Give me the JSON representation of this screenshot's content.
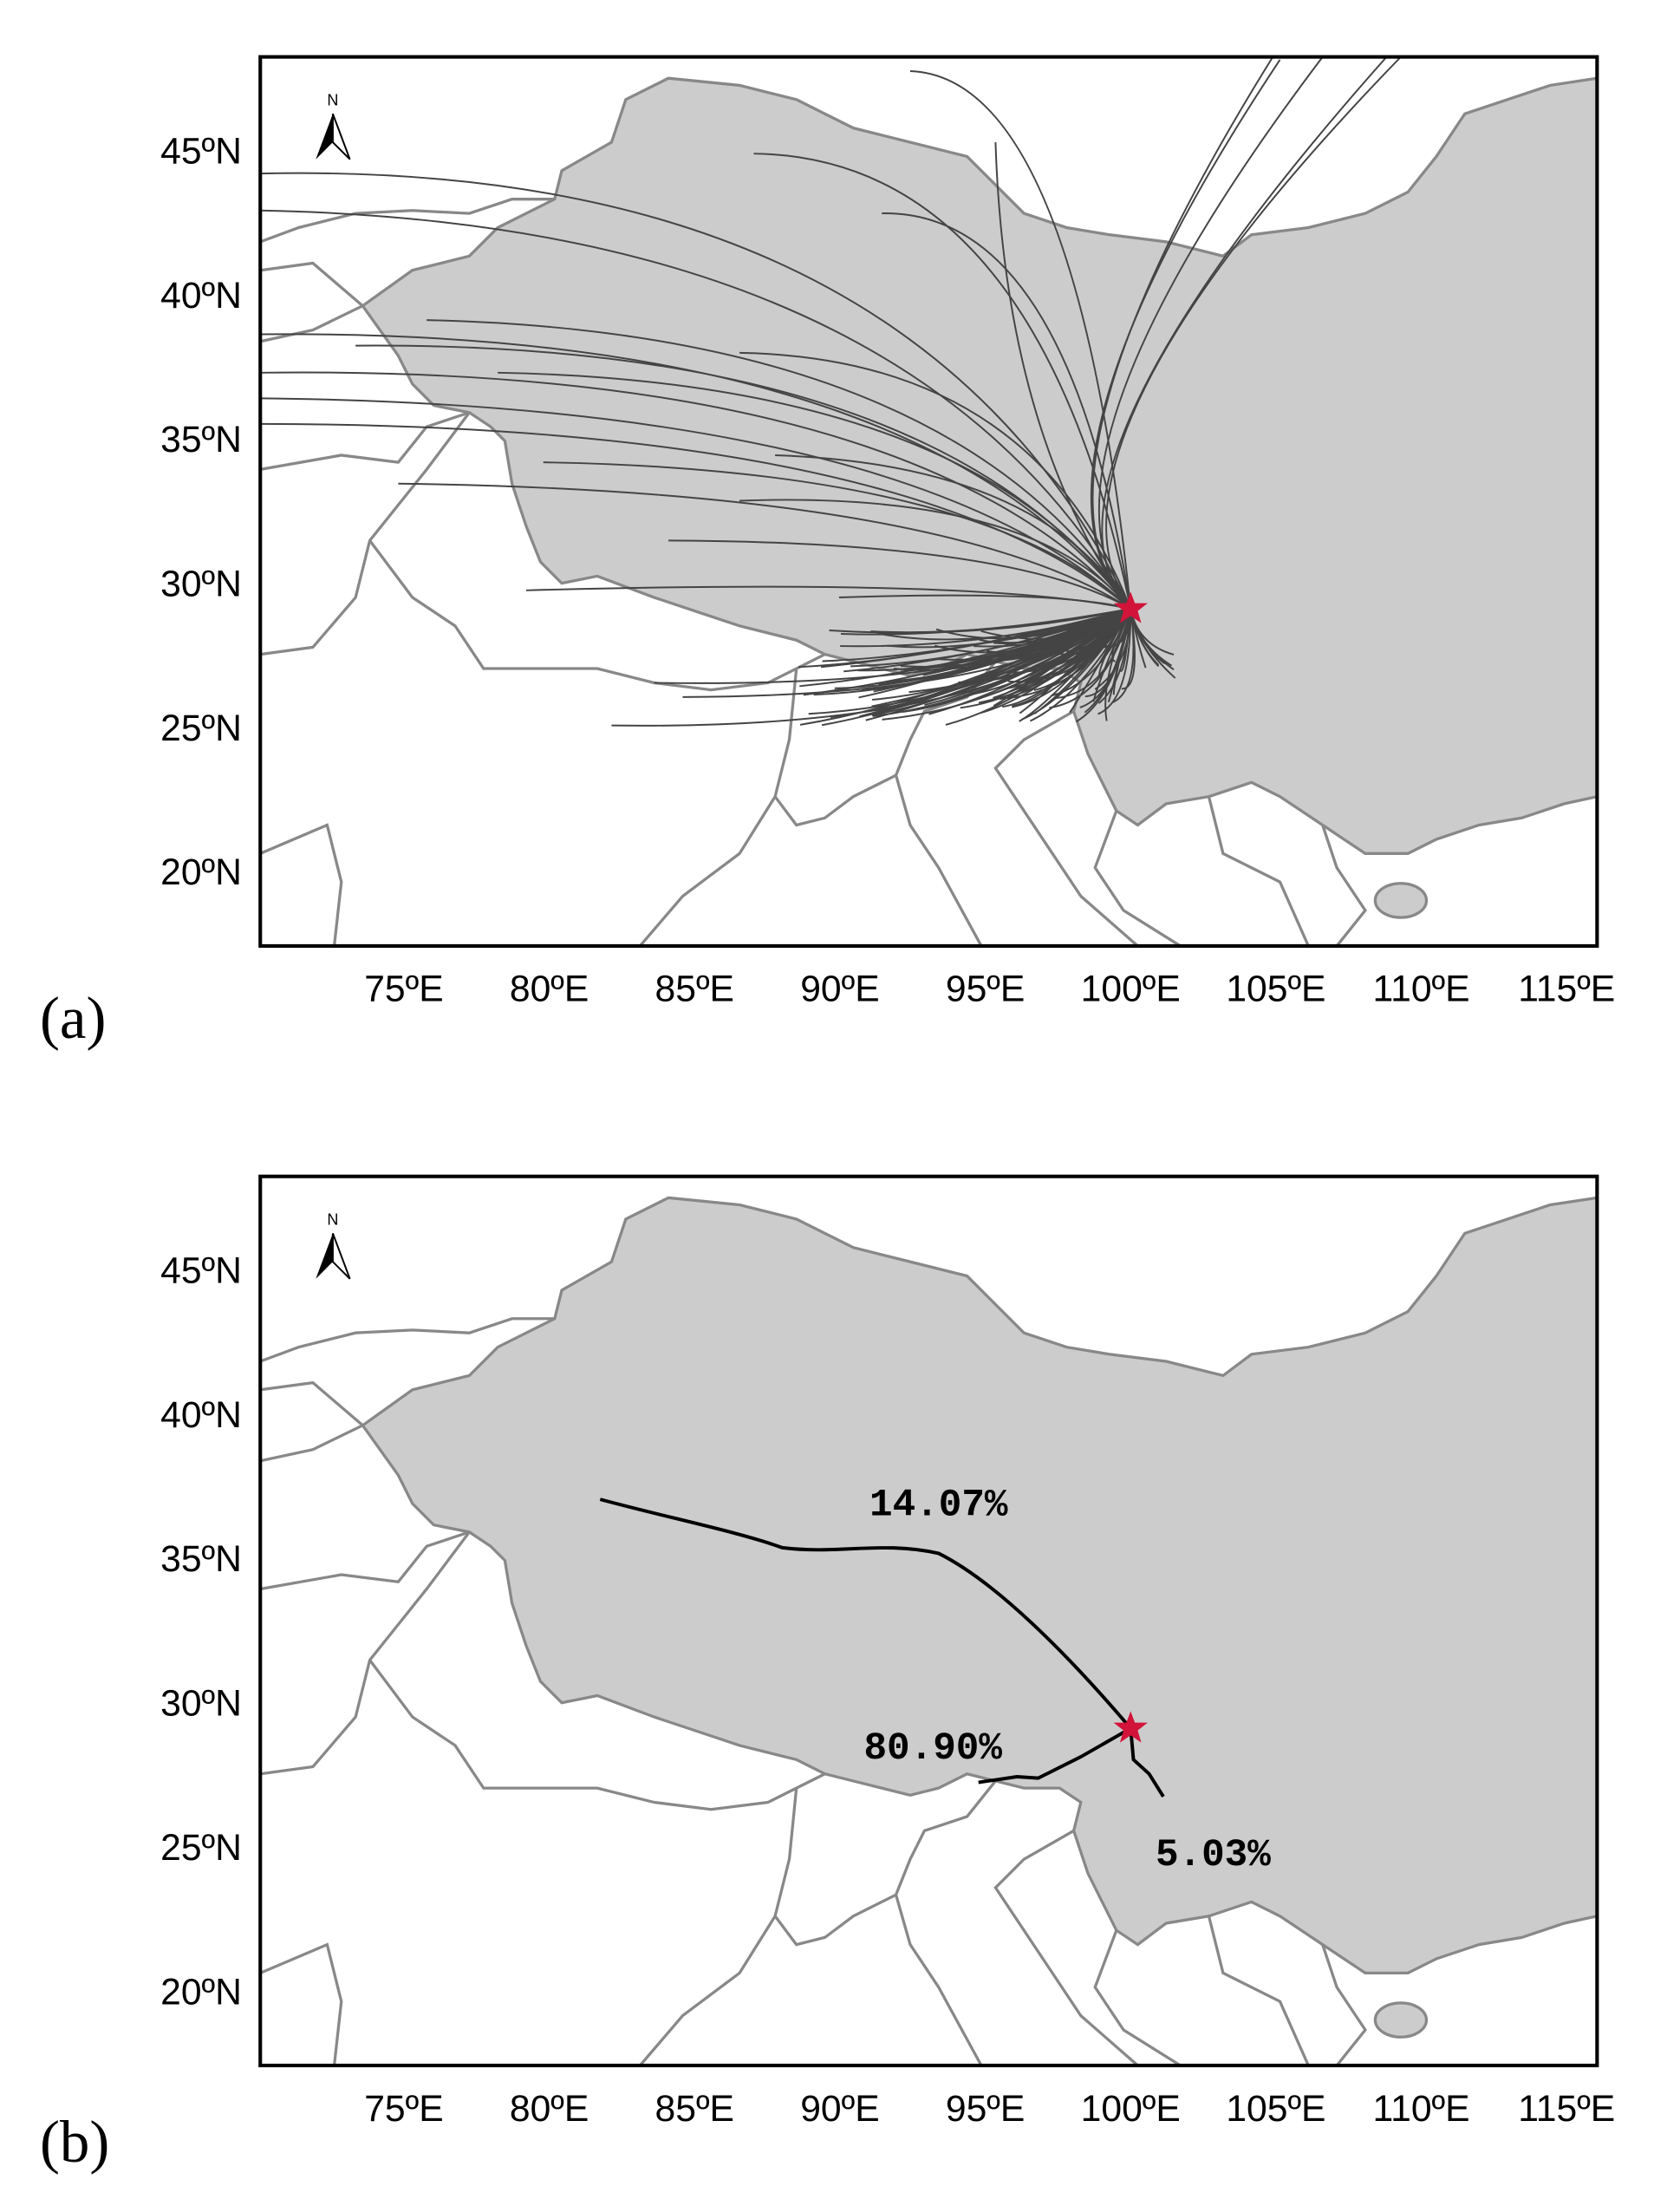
{
  "panels": [
    {
      "label": "(a)",
      "compass": "N",
      "yticks": [
        "45ºN",
        "40ºN",
        "35ºN",
        "30ºN",
        "25ºN",
        "20ºN"
      ],
      "xticks": [
        "75ºE",
        "80ºE",
        "85ºE",
        "90ºE",
        "95ºE",
        "100ºE",
        "105ºE",
        "110ºE",
        "115ºE"
      ]
    },
    {
      "label": "(b)",
      "compass": "N",
      "yticks": [
        "45ºN",
        "40ºN",
        "35ºN",
        "30ºN",
        "25ºN",
        "20ºN"
      ],
      "xticks": [
        "75ºE",
        "80ºE",
        "85ºE",
        "90ºE",
        "95ºE",
        "100ºE",
        "105ºE",
        "110ºE",
        "115ºE"
      ],
      "clusters": [
        {
          "label": "14.07%"
        },
        {
          "label": "80.90%"
        },
        {
          "label": "5.03%"
        }
      ]
    }
  ]
}
